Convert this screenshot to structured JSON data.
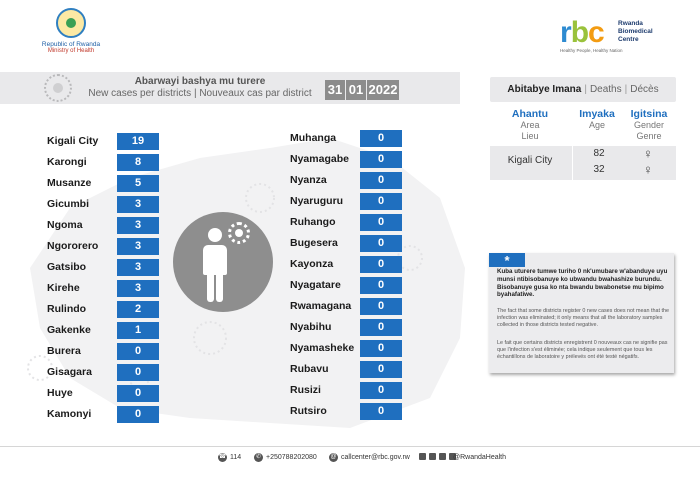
{
  "header": {
    "gov_line1": "Republic of Rwanda",
    "gov_line2": "Ministry of Health",
    "rbc_mark": {
      "r": "r",
      "b": "b",
      "c": "c"
    },
    "rbc_name": "Rwanda Biomedical Centre",
    "rbc_tagline": "Healthy People, Healthy Nation"
  },
  "banner": {
    "title": "Abarwayi bashya mu turere",
    "subtitle": "New cases per districts  |  Nouveaux cas par district",
    "date_day": "31",
    "date_month": "01",
    "date_year": "2022"
  },
  "districts_left": [
    {
      "name": "Kigali City",
      "value": "19"
    },
    {
      "name": "Karongi",
      "value": "8"
    },
    {
      "name": "Musanze",
      "value": "5"
    },
    {
      "name": "Gicumbi",
      "value": "3"
    },
    {
      "name": "Ngoma",
      "value": "3"
    },
    {
      "name": "Ngororero",
      "value": "3"
    },
    {
      "name": "Gatsibo",
      "value": "3"
    },
    {
      "name": "Kirehe",
      "value": "3"
    },
    {
      "name": "Rulindo",
      "value": "2"
    },
    {
      "name": "Gakenke",
      "value": "1"
    },
    {
      "name": "Burera",
      "value": "0"
    },
    {
      "name": "Gisagara",
      "value": "0"
    },
    {
      "name": "Huye",
      "value": "0"
    },
    {
      "name": "Kamonyi",
      "value": "0"
    }
  ],
  "districts_right": [
    {
      "name": "Muhanga",
      "value": "0"
    },
    {
      "name": "Nyamagabe",
      "value": "0"
    },
    {
      "name": "Nyanza",
      "value": "0"
    },
    {
      "name": "Nyaruguru",
      "value": "0"
    },
    {
      "name": "Ruhango",
      "value": "0"
    },
    {
      "name": "Bugesera",
      "value": "0"
    },
    {
      "name": "Kayonza",
      "value": "0"
    },
    {
      "name": "Nyagatare",
      "value": "0"
    },
    {
      "name": "Rwamagana",
      "value": "0"
    },
    {
      "name": "Nyabihu",
      "value": "0"
    },
    {
      "name": "Nyamasheke",
      "value": "0"
    },
    {
      "name": "Rubavu",
      "value": "0"
    },
    {
      "name": "Rusizi",
      "value": "0"
    },
    {
      "name": "Rutsiro",
      "value": "0"
    }
  ],
  "deaths": {
    "title_kin": "Abitabye Imana",
    "title_en": "Deaths",
    "title_fr": "Décès",
    "sep": "|",
    "col_area": {
      "main": "Ahantu",
      "en": "Area",
      "fr": "Lieu"
    },
    "col_age": {
      "main": "Imyaka",
      "en": "Age"
    },
    "col_gender": {
      "main": "Igitsina",
      "en": "Gender",
      "fr": "Genre"
    },
    "row": {
      "area": "Kigali City",
      "age1": "82",
      "age2": "32",
      "gender1": "♀",
      "gender2": "♀"
    }
  },
  "note": {
    "tag": "*",
    "kinyarwanda": "Kuba uturere tumwe turiho 0 nk'umubare w'abanduye uyu munsi ntibisobanuye ko ubwandu bwahashize burundu. Bisobanuye gusa ko nta bwandu bwabonetse mu bipimo byahafatiwe.",
    "english": "The fact that some districts register 0 new cases does not mean that the infection was eliminated; it only means that all the laboratory samples collected in those districts tested negative.",
    "french": "Le fait que certains districts enregistrent 0 nouveaux cas ne signifie pas que l'infection s'est éliminée; cela indique seulement que tous les échantillons de laboratoire y prélevés ont été testé négatifs."
  },
  "footer": {
    "hotline": "114",
    "phone": "+250788202080",
    "email": "callcenter@rbc.gov.rw",
    "social": "@RwandaHealth"
  },
  "colors": {
    "value_box": "#1f6fbf",
    "banner_bg": "#e9e9eb",
    "date_box": "#8c8c8c",
    "accent_blue": "#1f6fbf"
  }
}
